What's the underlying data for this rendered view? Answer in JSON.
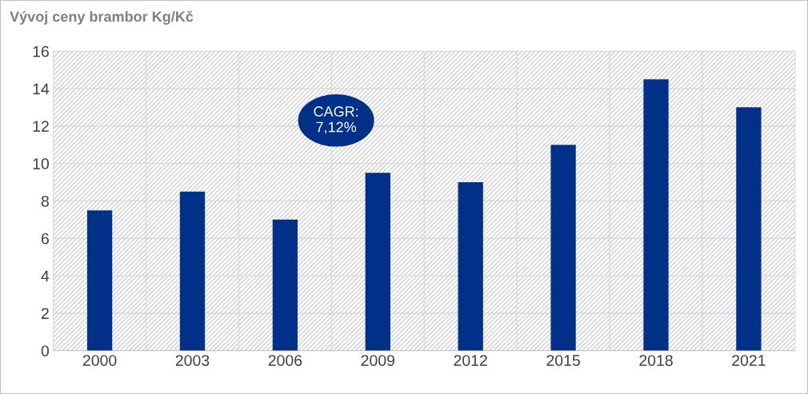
{
  "chart_data": {
    "type": "bar",
    "title": "Vývoj ceny brambor Kg/Kč",
    "categories": [
      "2000",
      "2003",
      "2006",
      "2009",
      "2012",
      "2015",
      "2018",
      "2021"
    ],
    "values": [
      7.5,
      8.5,
      7,
      9.5,
      9,
      11,
      14.5,
      13
    ],
    "color": "#003087",
    "ylim": [
      0,
      16
    ],
    "yticks": [
      0,
      2,
      4,
      6,
      8,
      10,
      12,
      14,
      16
    ],
    "grid": true,
    "annotations": [
      "CAGR:\n7,12%"
    ]
  }
}
